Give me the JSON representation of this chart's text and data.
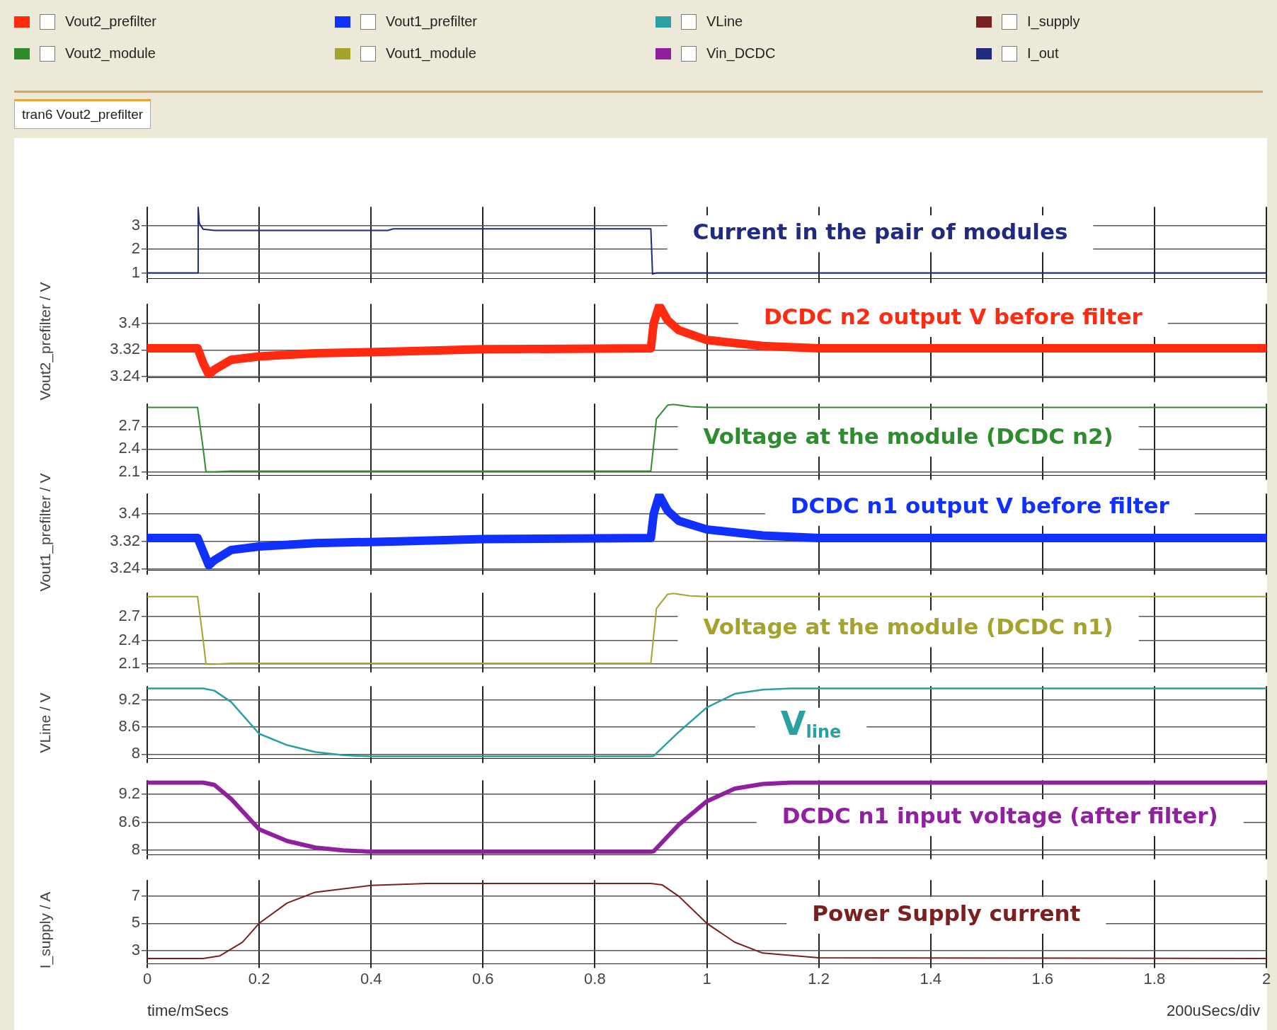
{
  "chart_data": [
    {
      "type": "line",
      "title": "tran6 Vout2_prefilter",
      "legend": "top",
      "grid": true,
      "marker": "none",
      "line_style": "solid",
      "tick_labels": "y",
      "xlim": [
        0,
        2
      ],
      "xticks": [
        0,
        0.2,
        0.4,
        0.6,
        0.8,
        1,
        1.2,
        1.4,
        1.6,
        1.8,
        2
      ],
      "ylim": [
        0.75,
        3.8
      ],
      "yticks": [
        1,
        2,
        3
      ],
      "annotations": [
        "Current in the pair of modules"
      ],
      "series": [
        {
          "name": "I_out",
          "color": "#1f2a80",
          "x": [
            0,
            0.09,
            0.091,
            0.093,
            0.1,
            0.12,
            0.43,
            0.44,
            0.9,
            0.903,
            0.91,
            0.92,
            2
          ],
          "values": [
            1,
            1,
            3.8,
            3.1,
            2.85,
            2.8,
            2.8,
            2.87,
            2.87,
            0.95,
            1,
            1,
            1
          ]
        }
      ]
    },
    {
      "type": "line",
      "ylabel": "Vout2_prefilter / V",
      "legend": "top",
      "grid": true,
      "marker": "none",
      "line_style": "solid",
      "tick_labels": "y",
      "xlim": [
        0,
        2
      ],
      "xticks": [
        0,
        0.2,
        0.4,
        0.6,
        0.8,
        1,
        1.2,
        1.4,
        1.6,
        1.8,
        2
      ],
      "ylim": [
        3.235,
        3.46
      ],
      "yticks": [
        3.24,
        3.32,
        3.4
      ],
      "annotations": [
        "DCDC n2 output V before filter"
      ],
      "series": [
        {
          "name": "Vout2_prefilter",
          "color": "#ff2a10",
          "x": [
            0,
            0.09,
            0.1,
            0.11,
            0.12,
            0.15,
            0.2,
            0.3,
            0.45,
            0.6,
            0.9,
            0.905,
            0.915,
            0.93,
            0.95,
            1.0,
            1.1,
            1.2,
            2
          ],
          "values": [
            3.325,
            3.325,
            3.28,
            3.245,
            3.26,
            3.29,
            3.3,
            3.31,
            3.315,
            3.322,
            3.325,
            3.4,
            3.455,
            3.41,
            3.38,
            3.35,
            3.332,
            3.325,
            3.325
          ]
        }
      ]
    },
    {
      "type": "line",
      "legend": "top",
      "grid": true,
      "marker": "none",
      "line_style": "solid",
      "tick_labels": "y",
      "xlim": [
        0,
        2
      ],
      "xticks": [
        0,
        0.2,
        0.4,
        0.6,
        0.8,
        1,
        1.2,
        1.4,
        1.6,
        1.8,
        2
      ],
      "ylim": [
        2.05,
        3.0
      ],
      "yticks": [
        2.1,
        2.4,
        2.7
      ],
      "annotations": [
        "Voltage at the module (DCDC n2)"
      ],
      "series": [
        {
          "name": "Vout2_module",
          "color": "#2e8b2e",
          "x": [
            0,
            0.09,
            0.1,
            0.105,
            0.12,
            0.15,
            0.9,
            0.91,
            0.93,
            0.94,
            0.97,
            1.0,
            2
          ],
          "values": [
            2.95,
            2.95,
            2.4,
            2.1,
            2.1,
            2.11,
            2.11,
            2.8,
            2.98,
            2.99,
            2.96,
            2.95,
            2.95
          ]
        }
      ]
    },
    {
      "type": "line",
      "ylabel": "Vout1_prefilter / V",
      "legend": "top",
      "grid": true,
      "marker": "none",
      "line_style": "solid",
      "tick_labels": "y",
      "xlim": [
        0,
        2
      ],
      "xticks": [
        0,
        0.2,
        0.4,
        0.6,
        0.8,
        1,
        1.2,
        1.4,
        1.6,
        1.8,
        2
      ],
      "ylim": [
        3.235,
        3.46
      ],
      "yticks": [
        3.24,
        3.32,
        3.4
      ],
      "annotations": [
        "DCDC n1 output V before filter"
      ],
      "series": [
        {
          "name": "Vout1_prefilter",
          "color": "#1030ff",
          "x": [
            0,
            0.09,
            0.1,
            0.11,
            0.12,
            0.15,
            0.2,
            0.3,
            0.45,
            0.6,
            0.9,
            0.905,
            0.915,
            0.93,
            0.95,
            1.0,
            1.1,
            1.2,
            2
          ],
          "values": [
            3.33,
            3.33,
            3.29,
            3.25,
            3.265,
            3.295,
            3.305,
            3.315,
            3.32,
            3.327,
            3.33,
            3.4,
            3.455,
            3.41,
            3.38,
            3.355,
            3.337,
            3.33,
            3.33
          ]
        }
      ]
    },
    {
      "type": "line",
      "legend": "top",
      "grid": true,
      "marker": "none",
      "line_style": "solid",
      "tick_labels": "y",
      "xlim": [
        0,
        2
      ],
      "xticks": [
        0,
        0.2,
        0.4,
        0.6,
        0.8,
        1,
        1.2,
        1.4,
        1.6,
        1.8,
        2
      ],
      "ylim": [
        2.05,
        3.0
      ],
      "yticks": [
        2.1,
        2.4,
        2.7
      ],
      "annotations": [
        "Voltage at the module (DCDC n1)"
      ],
      "series": [
        {
          "name": "Vout1_module",
          "color": "#a3a32e",
          "x": [
            0,
            0.09,
            0.1,
            0.105,
            0.12,
            0.15,
            0.9,
            0.91,
            0.93,
            0.94,
            0.97,
            1.0,
            2
          ],
          "values": [
            2.95,
            2.95,
            2.4,
            2.1,
            2.1,
            2.11,
            2.11,
            2.8,
            2.98,
            2.99,
            2.96,
            2.95,
            2.95
          ]
        }
      ]
    },
    {
      "type": "line",
      "ylabel": "VLine / V",
      "legend": "top",
      "grid": true,
      "marker": "none",
      "line_style": "solid",
      "tick_labels": "y",
      "xlim": [
        0,
        2
      ],
      "xticks": [
        0,
        0.2,
        0.4,
        0.6,
        0.8,
        1,
        1.2,
        1.4,
        1.6,
        1.8,
        2
      ],
      "ylim": [
        7.9,
        9.5
      ],
      "yticks": [
        8,
        8.6,
        9.2
      ],
      "annotations": [
        "V$_{line}$"
      ],
      "series": [
        {
          "name": "VLine",
          "color": "#2aa0a0",
          "x": [
            0,
            0.1,
            0.12,
            0.15,
            0.2,
            0.25,
            0.3,
            0.35,
            0.4,
            0.9,
            0.905,
            0.95,
            1.0,
            1.05,
            1.1,
            1.15,
            1.2,
            2
          ],
          "values": [
            9.45,
            9.45,
            9.4,
            9.15,
            8.45,
            8.2,
            8.05,
            7.98,
            7.95,
            7.95,
            7.96,
            8.49,
            9.03,
            9.33,
            9.42,
            9.45,
            9.45,
            9.45
          ]
        }
      ]
    },
    {
      "type": "line",
      "legend": "top",
      "grid": true,
      "marker": "none",
      "line_style": "solid",
      "tick_labels": "y",
      "xlim": [
        0,
        2
      ],
      "xticks": [
        0,
        0.2,
        0.4,
        0.6,
        0.8,
        1,
        1.2,
        1.4,
        1.6,
        1.8,
        2
      ],
      "ylim": [
        7.9,
        9.5
      ],
      "yticks": [
        8,
        8.6,
        9.2
      ],
      "annotations": [
        "DCDC n1 input voltage (after filter)"
      ],
      "series": [
        {
          "name": "Vin_DCDC",
          "color": "#9020a0",
          "x": [
            0,
            0.1,
            0.12,
            0.15,
            0.2,
            0.25,
            0.3,
            0.35,
            0.4,
            0.9,
            0.905,
            0.95,
            1.0,
            1.05,
            1.1,
            1.15,
            1.2,
            2
          ],
          "values": [
            9.45,
            9.45,
            9.4,
            9.1,
            8.45,
            8.2,
            8.06,
            8.0,
            7.97,
            7.97,
            7.98,
            8.55,
            9.05,
            9.32,
            9.42,
            9.45,
            9.45,
            9.45
          ]
        }
      ]
    },
    {
      "type": "line",
      "ylabel": "I_supply / A",
      "xlabel": "time/mSecs",
      "legend": "top",
      "grid": true,
      "marker": "none",
      "line_style": "solid",
      "xlim": [
        0,
        2
      ],
      "xticks": [
        0,
        0.2,
        0.4,
        0.6,
        0.8,
        1,
        1.2,
        1.4,
        1.6,
        1.8,
        2
      ],
      "ylim": [
        2,
        8.2
      ],
      "yticks": [
        3,
        5,
        7
      ],
      "annotations": [
        "Power Supply current",
        "200uSecs/div"
      ],
      "series": [
        {
          "name": "I_supply",
          "color": "#7a2020",
          "x": [
            0,
            0.1,
            0.13,
            0.17,
            0.2,
            0.25,
            0.3,
            0.4,
            0.5,
            0.9,
            0.92,
            0.95,
            1.0,
            1.05,
            1.1,
            1.2,
            2
          ],
          "values": [
            2.4,
            2.4,
            2.6,
            3.6,
            5.0,
            6.5,
            7.3,
            7.8,
            7.95,
            7.95,
            7.85,
            7.0,
            5.0,
            3.6,
            2.8,
            2.45,
            2.4
          ]
        }
      ]
    }
  ]
}
